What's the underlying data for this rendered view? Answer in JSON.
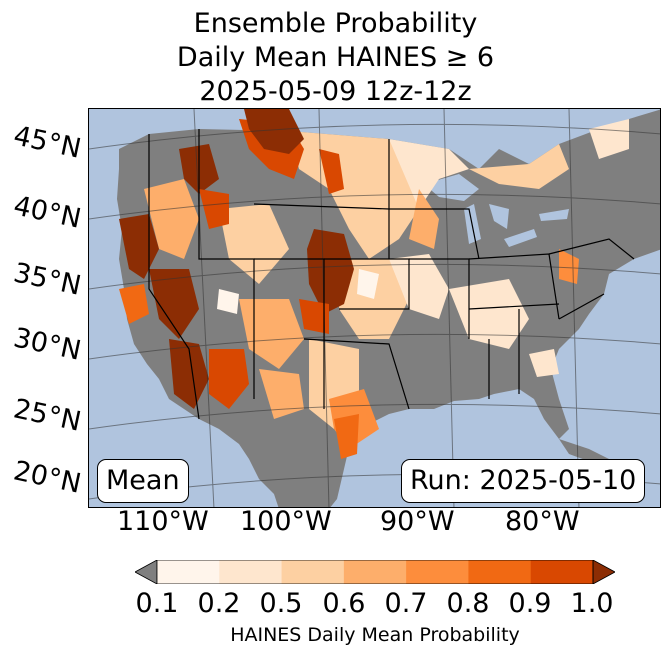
{
  "title": {
    "line1": "Ensemble Probability",
    "line2": "Daily Mean HAINES ≥ 6",
    "line3": "2025-05-09 12z-12z"
  },
  "map": {
    "lat_labels": [
      "45°N",
      "40°N",
      "35°N",
      "30°N",
      "25°N",
      "20°N"
    ],
    "lon_labels": [
      "110°W",
      "100°W",
      "90°W",
      "80°W"
    ],
    "stat_box": "Mean",
    "run_box": "Run: 2025-05-10"
  },
  "colorbar": {
    "ticks": [
      "0.1",
      "0.2",
      "0.5",
      "0.6",
      "0.7",
      "0.8",
      "0.9",
      "1.0"
    ],
    "label": "HAINES Daily Mean Probability",
    "colors": [
      "#fff5eb",
      "#fee6ce",
      "#fdd0a2",
      "#fdae6b",
      "#fd8d3c",
      "#f16913",
      "#d94801",
      "#8c2d04"
    ],
    "under_color": "#7f7f7f"
  },
  "colors": {
    "ocean": "#b0c4de",
    "no_data_gray": "#7f7f7f"
  }
}
